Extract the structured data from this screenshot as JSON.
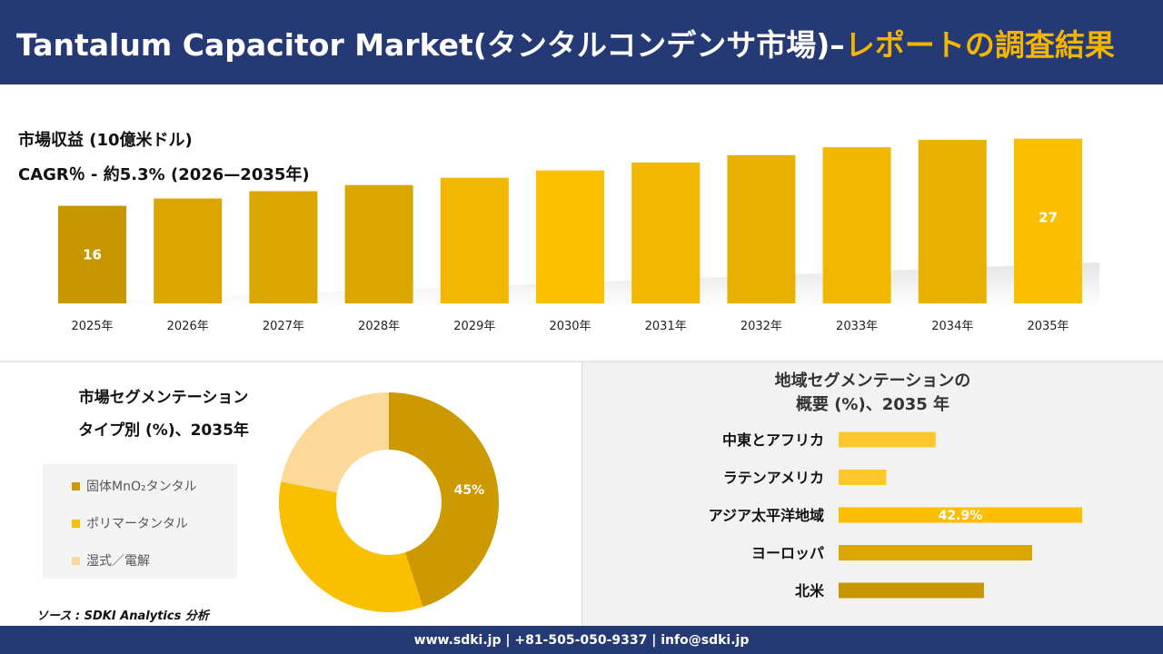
{
  "header": {
    "title_main": "Tantalum Capacitor Market(タンタルコンデンサ市場)–",
    "title_highlight": "レポートの調査結果"
  },
  "kpis": {
    "revenue_label": "市場収益 (10億米ドル)",
    "cagr_label": "CAGR％ - 約5.3% (2026—2035年)"
  },
  "colors": {
    "header_bg": "#253a74",
    "gold": "#f4b400",
    "bar_gold": "#e4ad00",
    "dark_gold": "#c89700",
    "light_peach": "#fcd998",
    "panel_gray": "#f2f2f2"
  },
  "segment": {
    "title_line1": "市場セグメンテーション",
    "title_line2": "タイプ別 (%)、2035年",
    "legend": [
      {
        "label": "固体MnO₂タンタル",
        "color": "#cc9900"
      },
      {
        "label": "ポリマータンタル",
        "color": "#f9c000"
      },
      {
        "label": "湿式／電解",
        "color": "#fcd998"
      }
    ]
  },
  "region": {
    "title_line1": "地域セグメンテーションの",
    "title_line2": "概要 (%)、2035 年"
  },
  "source": "ソース : SDKI Analytics 分析",
  "footer": {
    "contact": "www.sdki.jp | +81-505-050-9337 | info@sdki.jp"
  },
  "chart_data": [
    {
      "type": "bar",
      "categories": [
        "2025年",
        "2026年",
        "2027年",
        "2028年",
        "2029年",
        "2030年",
        "2031年",
        "2032年",
        "2033年",
        "2034年",
        "2035年"
      ],
      "values": [
        16,
        17.2,
        18.4,
        19.4,
        20.6,
        21.8,
        23.1,
        24.3,
        25.6,
        26.8,
        27
      ],
      "data_labels": {
        "0": "16",
        "10": "27"
      },
      "colors": [
        "#c89700",
        "#dca600",
        "#dca600",
        "#dca600",
        "#f2b700",
        "#fbc000",
        "#f2b700",
        "#e8b000",
        "#f2b700",
        "#e8b000",
        "#f9bf00"
      ],
      "ylim": [
        0,
        28
      ],
      "grid": false,
      "xlabel": "",
      "ylabel": ""
    },
    {
      "type": "pie",
      "donut": true,
      "labels": [
        "固体MnO₂タンタル",
        "ポリマータンタル",
        "湿式／電解"
      ],
      "values": [
        45,
        33,
        22
      ],
      "data_labels": {
        "0": "45%"
      },
      "colors": [
        "#cc9900",
        "#f9c000",
        "#fcd998"
      ],
      "legend": "left"
    },
    {
      "type": "bar",
      "orientation": "horizontal",
      "categories": [
        "中東とアフリカ",
        "ラテンアメリカ",
        "アジア太平洋地域",
        "ヨーロッパ",
        "北米"
      ],
      "values": [
        17.1,
        8.4,
        42.9,
        34.1,
        25.6
      ],
      "data_labels": {
        "2": "42.9%"
      },
      "colors": [
        "#ffc62e",
        "#ffc62e",
        "#fbbe00",
        "#dca600",
        "#c89700"
      ],
      "xlim": [
        0,
        45
      ],
      "grid": false
    }
  ]
}
